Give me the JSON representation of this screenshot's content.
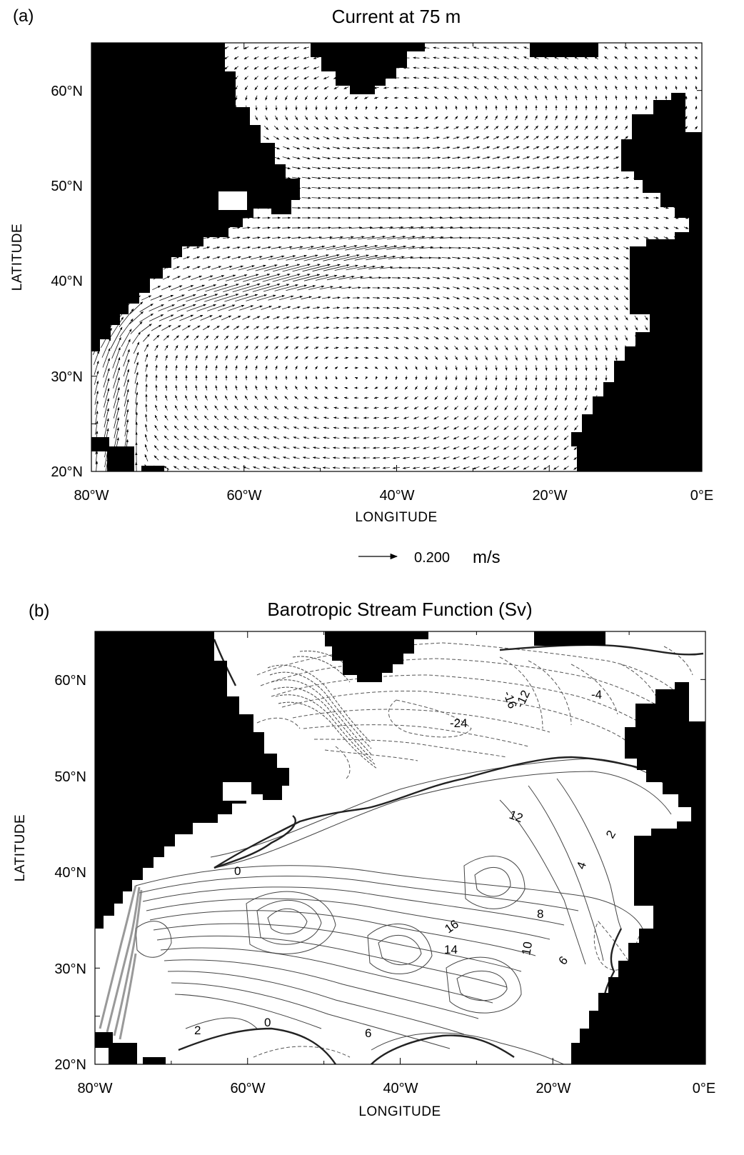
{
  "panel_a": {
    "label": "(a)",
    "title": "Current at 75 m",
    "xlabel": "LONGITUDE",
    "ylabel": "LATITUDE",
    "x_ticks": [
      "80°W",
      "60°W",
      "40°W",
      "20°W",
      "0°E"
    ],
    "y_ticks": [
      "60°N",
      "50°N",
      "40°N",
      "30°N",
      "20°N"
    ],
    "y_tick_values": [
      60,
      50,
      40,
      30,
      20
    ],
    "x_tick_values": [
      -80,
      -60,
      -40,
      -20,
      0
    ],
    "reference_vector": {
      "value": "0.200",
      "unit": "m/s"
    }
  },
  "panel_b": {
    "label": "(b)",
    "title": "Barotropic Stream Function (Sv)",
    "xlabel": "LONGITUDE",
    "ylabel": "LATITUDE",
    "x_ticks": [
      "80°W",
      "60°W",
      "40°W",
      "20°W",
      "0°E"
    ],
    "y_ticks": [
      "60°N",
      "50°N",
      "40°N",
      "30°N",
      "20°N"
    ],
    "contour_labels": [
      "-16",
      "-12",
      "-24",
      "-4",
      "12",
      "16",
      "14",
      "10",
      "8",
      "6",
      "4",
      "2",
      "0",
      "0",
      "2",
      "6"
    ]
  },
  "map": {
    "lon_range": [
      -80,
      0
    ],
    "lat_range": [
      20,
      65
    ],
    "land_color": "#000000",
    "ocean_color": "#ffffff",
    "positive_contour_style": "solid",
    "negative_contour_style": "dashed"
  }
}
